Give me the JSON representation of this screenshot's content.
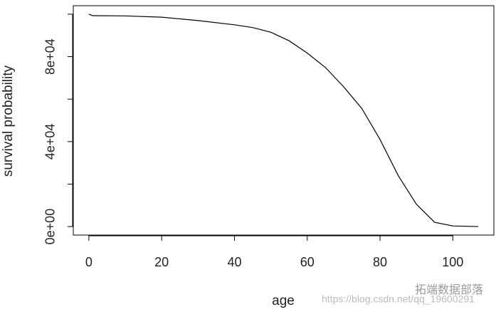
{
  "chart_data": {
    "type": "line",
    "xlabel": "age",
    "ylabel": "survival probability",
    "x": [
      0,
      1,
      10,
      20,
      30,
      40,
      45,
      50,
      55,
      60,
      65,
      70,
      75,
      80,
      85,
      90,
      95,
      100,
      107
    ],
    "series": [
      {
        "color": "#000000",
        "values": [
          100000,
          99300,
          99200,
          98600,
          97000,
          95000,
          93700,
          91500,
          87500,
          81700,
          74900,
          65800,
          55600,
          41000,
          24000,
          10500,
          2000,
          300,
          0
        ]
      }
    ],
    "xlim": [
      -4.28,
      111.28
    ],
    "xticks": [
      0,
      20,
      40,
      60,
      80,
      100
    ],
    "ylim": [
      -4000,
      104000
    ],
    "yticks": [
      {
        "value": 0,
        "label": "0e+00"
      },
      {
        "value": 40000,
        "label": "4e+04"
      },
      {
        "value": 80000,
        "label": "8e+04"
      }
    ],
    "yticks_unlabeled": [
      20000,
      60000,
      100000
    ],
    "watermark": {
      "brand": "拓端数据部落",
      "url": "https://blog.csdn.net/qq_19600291"
    }
  }
}
